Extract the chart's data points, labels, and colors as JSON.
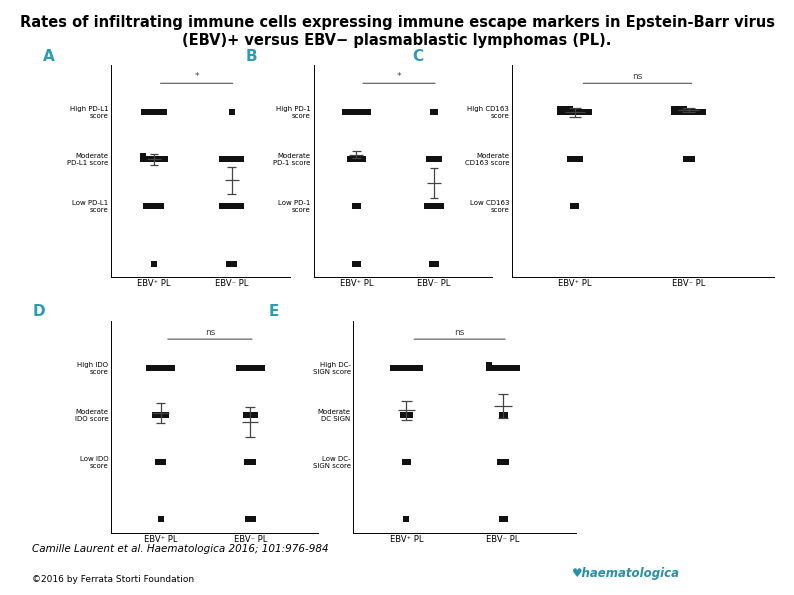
{
  "title_line1": "Rates of infiltrating immune cells expressing immune escape markers in Epstein-Barr virus",
  "title_line2": "(EBV)+ versus EBV− plasmablastic lymphomas (PL).",
  "title_fontsize": 10.5,
  "bg_color": "#ffffff",
  "panel_label_color": "#2e9bb5",
  "panels": [
    {
      "label": "A",
      "ytick_labels": [
        "High PD-L1\nscore",
        "Moderate\nPD-L1 score",
        "Low PD-L1\nscore"
      ],
      "xticklabels": [
        "EBV⁺ PL",
        "EBV⁻ PL"
      ],
      "sig_text": "*",
      "groups": {
        "EBV+": {
          "High": {
            "dots": 9,
            "spread": 0.032
          },
          "Moderate": {
            "dots": 11,
            "spread": 0.032,
            "mean": 2.0,
            "sem": 0.12
          },
          "Low": {
            "dots": 7,
            "spread": 0.032
          },
          "below": 1
        },
        "EBV-": {
          "High": {
            "dots": 1,
            "spread": 0.0
          },
          "Moderate": {
            "dots": 9,
            "spread": 0.032,
            "mean": 1.55,
            "sem": 0.28
          },
          "Low": {
            "dots": 9,
            "spread": 0.032
          },
          "below": 3
        }
      }
    },
    {
      "label": "B",
      "ytick_labels": [
        "High PD-1\nscore",
        "Moderate\nPD-1 score",
        "Low PD-1\nscore"
      ],
      "xticklabels": [
        "EBV⁺ PL",
        "EBV⁻ PL"
      ],
      "sig_text": "*",
      "groups": {
        "EBV+": {
          "High": {
            "dots": 10,
            "spread": 0.032
          },
          "Moderate": {
            "dots": 6,
            "spread": 0.032,
            "mean": 2.1,
            "sem": 0.08
          },
          "Low": {
            "dots": 2,
            "spread": 0.032
          },
          "below": 2
        },
        "EBV-": {
          "High": {
            "dots": 2,
            "spread": 0.032
          },
          "Moderate": {
            "dots": 5,
            "spread": 0.032,
            "mean": 1.5,
            "sem": 0.32
          },
          "Low": {
            "dots": 7,
            "spread": 0.032
          },
          "below": 3
        }
      }
    },
    {
      "label": "C",
      "ytick_labels": [
        "High CD163\nscore",
        "Moderate\nCD163 score",
        "Low CD163\nscore"
      ],
      "xticklabels": [
        "EBV⁺ PL",
        "EBV⁻ PL"
      ],
      "sig_text": "ns",
      "groups": {
        "EBV+": {
          "High": {
            "dots": 14,
            "spread": 0.028,
            "mean": 3.0,
            "sem": 0.09
          },
          "Moderate": {
            "dots": 4,
            "spread": 0.028
          },
          "Low": {
            "dots": 2,
            "spread": 0.028
          },
          "below": 0
        },
        "EBV-": {
          "High": {
            "dots": 14,
            "spread": 0.028,
            "mean": 3.05,
            "sem": 0.05
          },
          "Moderate": {
            "dots": 3,
            "spread": 0.028
          },
          "Low": {
            "dots": 0,
            "spread": 0.0
          },
          "below": 0
        }
      }
    },
    {
      "label": "D",
      "ytick_labels": [
        "High IDO\nscore",
        "Moderate\nIDO score",
        "Low IDO\nscore"
      ],
      "xticklabels": [
        "EBV⁺ PL",
        "EBV⁻ PL"
      ],
      "sig_text": "ns",
      "groups": {
        "EBV+": {
          "High": {
            "dots": 9,
            "spread": 0.032
          },
          "Moderate": {
            "dots": 5,
            "spread": 0.032,
            "mean": 2.05,
            "sem": 0.22
          },
          "Low": {
            "dots": 3,
            "spread": 0.032
          },
          "below": 1
        },
        "EBV-": {
          "High": {
            "dots": 9,
            "spread": 0.032
          },
          "Moderate": {
            "dots": 4,
            "spread": 0.032,
            "mean": 1.85,
            "sem": 0.32
          },
          "Low": {
            "dots": 3,
            "spread": 0.032
          },
          "below": 3
        }
      }
    },
    {
      "label": "E",
      "ytick_labels": [
        "High DC-\nSIGN score",
        "Moderate\nDC SIGN",
        "Low DC-\nSIGN score"
      ],
      "xticklabels": [
        "EBV⁺ PL",
        "EBV⁻ PL"
      ],
      "sig_text": "ns",
      "groups": {
        "EBV+": {
          "High": {
            "dots": 10,
            "spread": 0.032
          },
          "Moderate": {
            "dots": 3,
            "spread": 0.032,
            "mean": 2.1,
            "sem": 0.2
          },
          "Low": {
            "dots": 2,
            "spread": 0.032
          },
          "below": 1
        },
        "EBV-": {
          "High": {
            "dots": 11,
            "spread": 0.032
          },
          "Moderate": {
            "dots": 2,
            "spread": 0.032,
            "mean": 2.2,
            "sem": 0.25
          },
          "Low": {
            "dots": 3,
            "spread": 0.032
          },
          "below": 2
        }
      }
    }
  ],
  "dot_color": "#111111",
  "dot_size": 4.5,
  "citation": "Camille Laurent et al. Haematologica 2016; 101:976-984",
  "copyright": "©2016 by Ferrata Storti Foundation"
}
